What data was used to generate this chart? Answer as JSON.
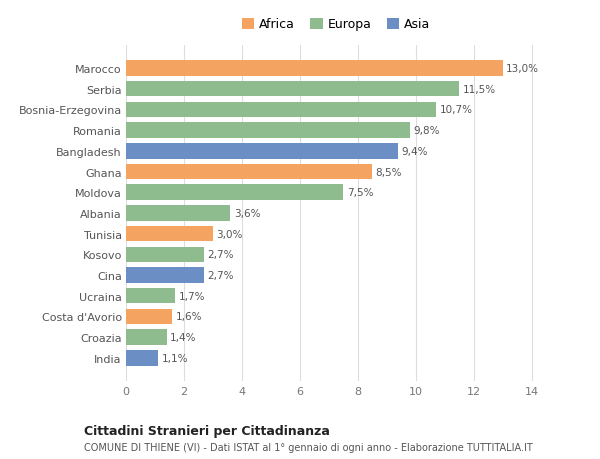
{
  "countries": [
    "India",
    "Croazia",
    "Costa d'Avorio",
    "Ucraina",
    "Cina",
    "Kosovo",
    "Tunisia",
    "Albania",
    "Moldova",
    "Ghana",
    "Bangladesh",
    "Romania",
    "Bosnia-Erzegovina",
    "Serbia",
    "Marocco"
  ],
  "values": [
    1.1,
    1.4,
    1.6,
    1.7,
    2.7,
    2.7,
    3.0,
    3.6,
    7.5,
    8.5,
    9.4,
    9.8,
    10.7,
    11.5,
    13.0
  ],
  "bar_colors_list": [
    "#6B8EC4",
    "#8FBC8F",
    "#F4A460",
    "#8FBC8F",
    "#6B8EC4",
    "#8FBC8F",
    "#F4A460",
    "#8FBC8F",
    "#8FBC8F",
    "#F4A460",
    "#6B8EC4",
    "#8FBC8F",
    "#8FBC8F",
    "#8FBC8F",
    "#F4A460"
  ],
  "title": "Cittadini Stranieri per Cittadinanza",
  "subtitle": "COMUNE DI THIENE (VI) - Dati ISTAT al 1° gennaio di ogni anno - Elaborazione TUTTITALIA.IT",
  "xlabel_values": [
    0,
    2,
    4,
    6,
    8,
    10,
    12,
    14
  ],
  "xlim": [
    0,
    14.5
  ],
  "background_color": "#ffffff",
  "grid_color": "#dddddd",
  "legend_labels": [
    "Africa",
    "Europa",
    "Asia"
  ],
  "legend_colors": [
    "#F4A460",
    "#8FBC8F",
    "#6B8EC4"
  ]
}
